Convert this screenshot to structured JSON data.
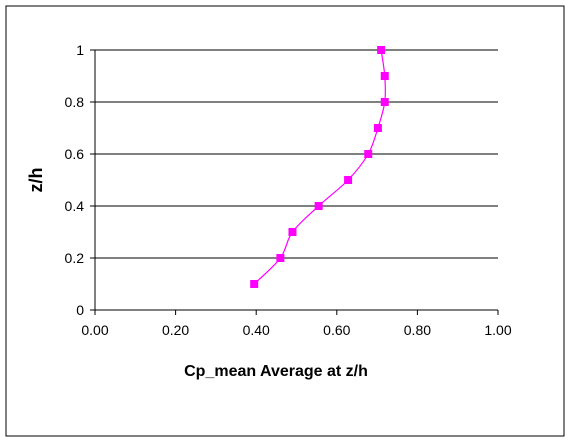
{
  "chart_data": {
    "type": "line",
    "title": "",
    "xlabel": "Cp_mean Average at z/h",
    "ylabel": "z/h",
    "xlim": [
      0,
      1
    ],
    "ylim": [
      0,
      1
    ],
    "x_ticks": [
      "0.00",
      "0.20",
      "0.40",
      "0.60",
      "0.80",
      "1.00"
    ],
    "y_ticks": [
      "0",
      "0.2",
      "0.4",
      "0.6",
      "0.8",
      "1"
    ],
    "grid": "horizontal",
    "legend": "none",
    "series": [
      {
        "color": "#ff00ff",
        "marker": "square",
        "smooth": true,
        "points": [
          {
            "x": 0.395,
            "y": 0.1
          },
          {
            "x": 0.46,
            "y": 0.2
          },
          {
            "x": 0.49,
            "y": 0.3
          },
          {
            "x": 0.555,
            "y": 0.4
          },
          {
            "x": 0.628,
            "y": 0.5
          },
          {
            "x": 0.678,
            "y": 0.6
          },
          {
            "x": 0.702,
            "y": 0.7
          },
          {
            "x": 0.719,
            "y": 0.8
          },
          {
            "x": 0.719,
            "y": 0.9
          },
          {
            "x": 0.71,
            "y": 1.0
          }
        ]
      }
    ]
  }
}
